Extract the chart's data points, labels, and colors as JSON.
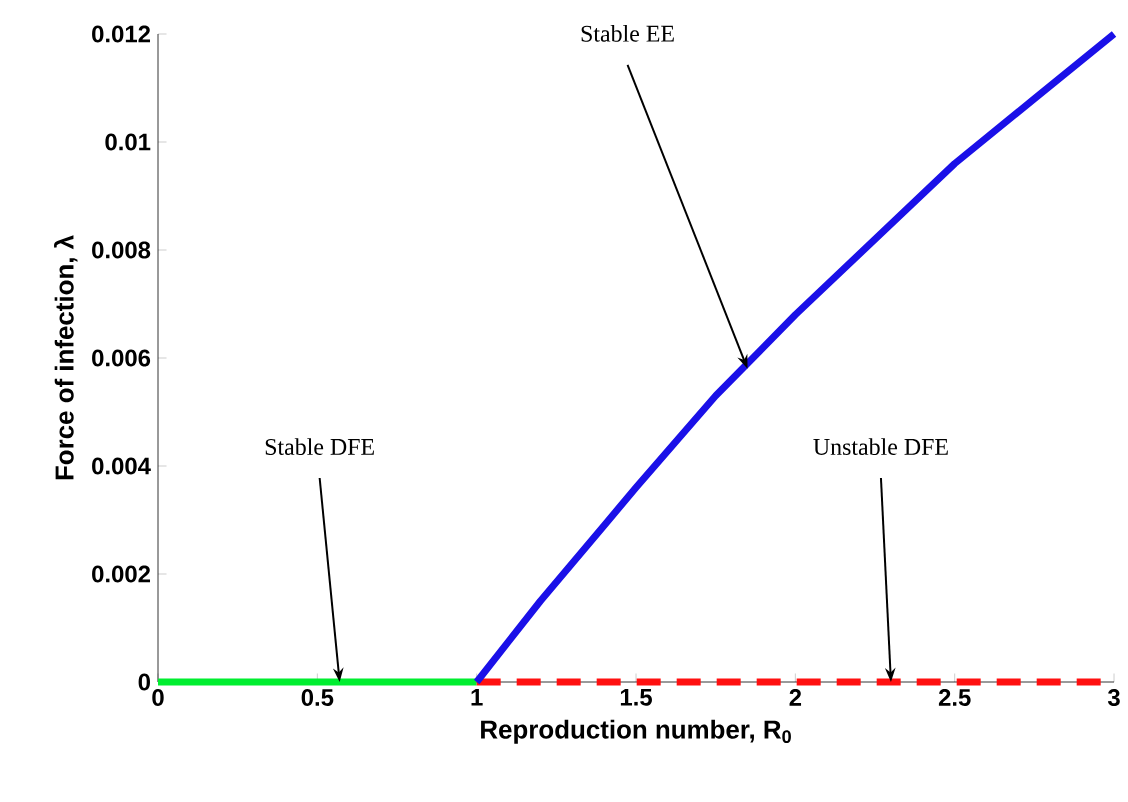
{
  "chart_data": {
    "type": "line",
    "xlabel": "Reproduction number, R$_{0}$",
    "ylabel": "Force of infection, λ",
    "xlim": [
      0,
      3
    ],
    "ylim": [
      0,
      0.012
    ],
    "xticks": [
      0,
      0.5,
      1,
      1.5,
      2,
      2.5,
      3
    ],
    "yticks": [
      0,
      0.002,
      0.004,
      0.006,
      0.008,
      0.01,
      0.012
    ],
    "series": [
      {
        "color": "#00ee30",
        "line_style": "solid",
        "x": [
          0,
          1
        ],
        "values": [
          0,
          0
        ]
      },
      {
        "color": "#ff1010",
        "line_style": "dashed",
        "x": [
          1,
          3
        ],
        "values": [
          0,
          0
        ]
      },
      {
        "color": "#1a10e8",
        "line_style": "solid",
        "x": [
          1,
          1.1,
          1.2,
          1.3,
          1.4,
          1.5,
          1.75,
          2,
          2.25,
          2.5,
          2.75,
          3
        ],
        "values": [
          0,
          0.00075,
          0.0015,
          0.0022,
          0.0029,
          0.0036,
          0.0053,
          0.0068,
          0.0082,
          0.0096,
          0.0108,
          0.012
        ]
      }
    ],
    "annotations": [
      {
        "text": "Stable DFE",
        "x": 0.57,
        "y": 0
      },
      {
        "text": "Stable EE",
        "x": 1.85,
        "y": 0.0058
      },
      {
        "text": "Unstable DFE",
        "x": 2.3,
        "y": 0
      }
    ]
  }
}
